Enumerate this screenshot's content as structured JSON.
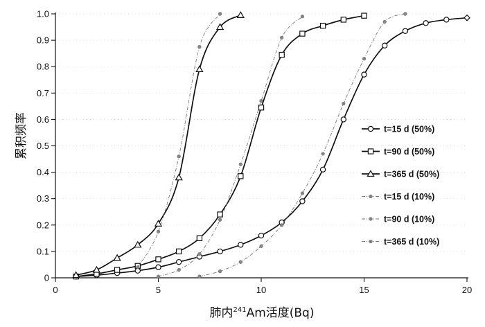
{
  "chart_data": {
    "type": "line",
    "title": "",
    "xlabel": {
      "prefix": "肺内",
      "sup": "241",
      "suffix": "Am活度(Bq)"
    },
    "ylabel": "累积频率",
    "xlim": [
      0,
      20
    ],
    "ylim": [
      0,
      1.0
    ],
    "xticks": [
      0,
      5,
      10,
      15,
      20
    ],
    "yticks": [
      0,
      0.1,
      0.2,
      0.3,
      0.4,
      0.5,
      0.6,
      0.7,
      0.8,
      0.9,
      1.0
    ],
    "ytick_labels": [
      "0",
      "0.1",
      "0.2",
      "0.3",
      "0.4",
      "0.5",
      "0.6",
      "0.7",
      "0.8",
      "0.9",
      "1.0"
    ],
    "xtick_labels": [
      "0",
      "5",
      "10",
      "15",
      "20"
    ],
    "legend_position": "right",
    "series": [
      {
        "name": "t=15 d (50%)",
        "marker": "circle",
        "style": "solid",
        "color": "#111111",
        "x": [
          1,
          2,
          3,
          4,
          5,
          6,
          7,
          8,
          9,
          10,
          11,
          12,
          13,
          14,
          15,
          16,
          17,
          18,
          19,
          20
        ],
        "y": [
          0.005,
          0.01,
          0.018,
          0.027,
          0.04,
          0.06,
          0.08,
          0.1,
          0.125,
          0.16,
          0.21,
          0.29,
          0.41,
          0.6,
          0.77,
          0.88,
          0.935,
          0.965,
          0.978,
          0.985
        ]
      },
      {
        "name": "t=90 d (50%)",
        "marker": "square",
        "style": "solid",
        "color": "#111111",
        "x": [
          1,
          2,
          3,
          4,
          5,
          6,
          7,
          8,
          9,
          10,
          11,
          12,
          13,
          14,
          15
        ],
        "y": [
          0.005,
          0.015,
          0.03,
          0.045,
          0.07,
          0.1,
          0.15,
          0.24,
          0.385,
          0.645,
          0.845,
          0.925,
          0.955,
          0.978,
          0.993
        ]
      },
      {
        "name": "t=365 d (50%)",
        "marker": "triangle",
        "style": "solid",
        "color": "#111111",
        "x": [
          1,
          2,
          3,
          4,
          5,
          6,
          7,
          8,
          9
        ],
        "y": [
          0.01,
          0.03,
          0.075,
          0.125,
          0.205,
          0.38,
          0.79,
          0.95,
          0.995
        ]
      },
      {
        "name": "t=15 d (10%)",
        "marker": "dot",
        "style": "dashed",
        "color": "#777777",
        "x": [
          7,
          8,
          9,
          10,
          11,
          12,
          13,
          14,
          15,
          16,
          17
        ],
        "y": [
          0.005,
          0.025,
          0.06,
          0.12,
          0.2,
          0.32,
          0.47,
          0.66,
          0.83,
          0.97,
          1.0
        ]
      },
      {
        "name": "t=90 d (10%)",
        "marker": "dot",
        "style": "dashed",
        "color": "#777777",
        "x": [
          5,
          6,
          7,
          8,
          9,
          10,
          11,
          12
        ],
        "y": [
          0.005,
          0.03,
          0.09,
          0.22,
          0.43,
          0.67,
          0.91,
          0.99
        ]
      },
      {
        "name": "t=365 d (10%)",
        "marker": "dot",
        "style": "dashed",
        "color": "#777777",
        "x": [
          4,
          5,
          6,
          7,
          8
        ],
        "y": [
          0.04,
          0.175,
          0.46,
          0.875,
          1.0
        ]
      }
    ]
  }
}
